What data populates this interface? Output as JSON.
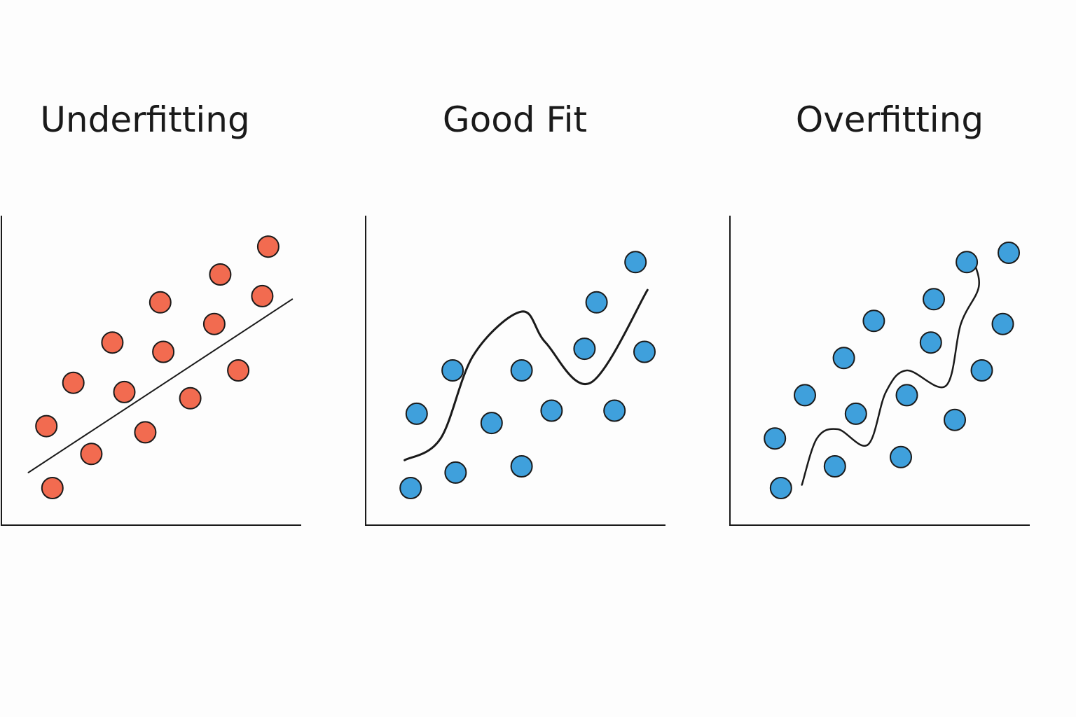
{
  "palette": {
    "underfit_point": "#f26b50",
    "fit_point": "#3fa0dc",
    "line": "#1a1a1a",
    "background": "#fdfdfd"
  },
  "chart_data": [
    {
      "type": "scatter",
      "title": "Underfitting",
      "xlabel": "",
      "ylabel": "",
      "xlim": [
        0,
        10
      ],
      "ylim": [
        0,
        10
      ],
      "grid": false,
      "point_color": "#f26b50",
      "fit": {
        "kind": "straight-line",
        "points": [
          [
            0.9,
            1.7
          ],
          [
            9.7,
            7.3
          ]
        ]
      },
      "points": [
        [
          1.7,
          1.2
        ],
        [
          3.0,
          2.3
        ],
        [
          1.5,
          3.2
        ],
        [
          4.8,
          3.0
        ],
        [
          2.4,
          4.6
        ],
        [
          4.1,
          4.3
        ],
        [
          6.3,
          4.1
        ],
        [
          3.7,
          5.9
        ],
        [
          5.4,
          5.6
        ],
        [
          7.9,
          5.0
        ],
        [
          7.1,
          6.5
        ],
        [
          5.3,
          7.2
        ],
        [
          8.7,
          7.4
        ],
        [
          7.3,
          8.1
        ],
        [
          8.9,
          9.0
        ]
      ]
    },
    {
      "type": "scatter",
      "title": "Good Fit",
      "xlabel": "",
      "ylabel": "",
      "xlim": [
        0,
        10
      ],
      "ylim": [
        0,
        10
      ],
      "grid": false,
      "point_color": "#3fa0dc",
      "fit": {
        "kind": "smooth-curve",
        "points": [
          [
            1.3,
            2.1
          ],
          [
            2.5,
            2.8
          ],
          [
            3.6,
            5.5
          ],
          [
            5.2,
            6.9
          ],
          [
            6.0,
            5.9
          ],
          [
            7.5,
            4.6
          ],
          [
            9.4,
            7.6
          ]
        ]
      },
      "points": [
        [
          1.5,
          1.2
        ],
        [
          3.0,
          1.7
        ],
        [
          5.2,
          1.9
        ],
        [
          1.7,
          3.6
        ],
        [
          4.2,
          3.3
        ],
        [
          6.2,
          3.7
        ],
        [
          8.3,
          3.7
        ],
        [
          2.9,
          5.0
        ],
        [
          5.2,
          5.0
        ],
        [
          7.3,
          5.7
        ],
        [
          9.3,
          5.6
        ],
        [
          7.7,
          7.2
        ],
        [
          9.0,
          8.5
        ]
      ]
    },
    {
      "type": "scatter",
      "title": "Overfitting",
      "xlabel": "",
      "ylabel": "",
      "xlim": [
        0,
        10
      ],
      "ylim": [
        0,
        10
      ],
      "grid": false,
      "point_color": "#3fa0dc",
      "fit": {
        "kind": "wiggly-curve",
        "points": [
          [
            2.4,
            1.3
          ],
          [
            2.9,
            2.8
          ],
          [
            3.6,
            3.1
          ],
          [
            4.6,
            2.6
          ],
          [
            5.2,
            4.3
          ],
          [
            5.9,
            5.0
          ],
          [
            7.2,
            4.5
          ],
          [
            7.7,
            6.5
          ],
          [
            8.3,
            7.7
          ],
          [
            8.1,
            8.6
          ]
        ]
      },
      "points": [
        [
          1.7,
          1.2
        ],
        [
          3.5,
          1.9
        ],
        [
          5.7,
          2.2
        ],
        [
          1.5,
          2.8
        ],
        [
          4.2,
          3.6
        ],
        [
          5.9,
          4.2
        ],
        [
          7.5,
          3.4
        ],
        [
          2.5,
          4.2
        ],
        [
          3.8,
          5.4
        ],
        [
          6.7,
          5.9
        ],
        [
          8.4,
          5.0
        ],
        [
          4.8,
          6.6
        ],
        [
          6.8,
          7.3
        ],
        [
          9.1,
          6.5
        ],
        [
          7.9,
          8.5
        ],
        [
          9.3,
          8.8
        ]
      ]
    }
  ]
}
